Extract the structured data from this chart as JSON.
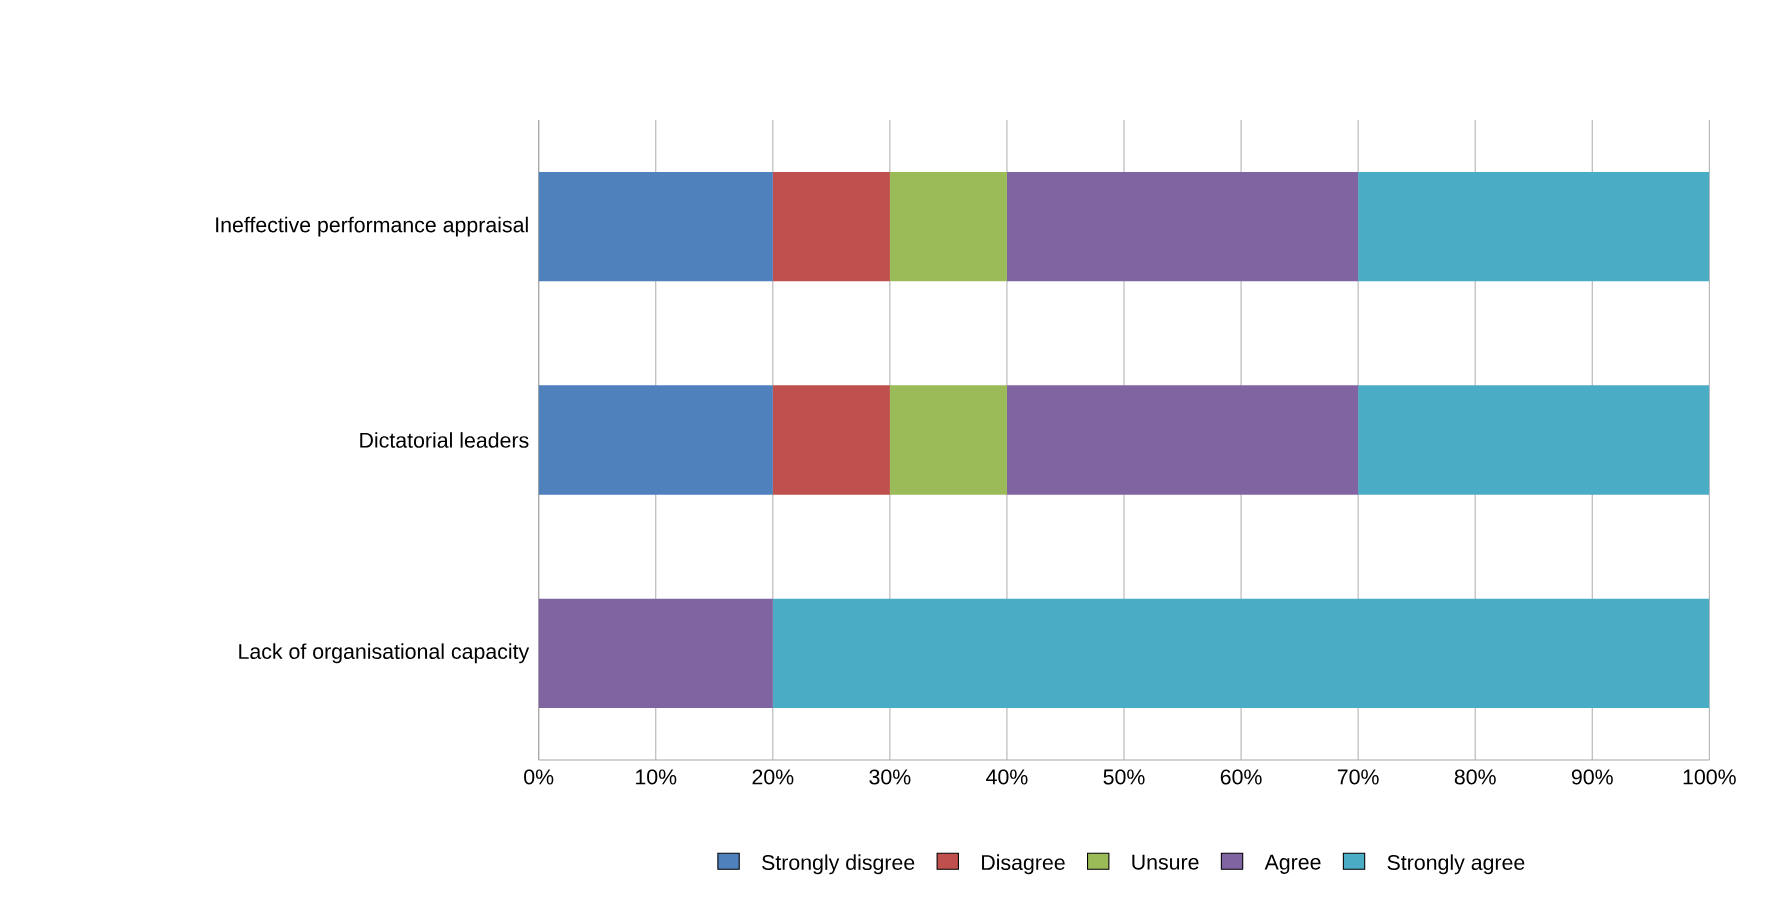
{
  "chart_data": {
    "type": "bar",
    "orientation": "horizontal",
    "stacked": true,
    "categories": [
      "Ineffective performance appraisal",
      "Dictatorial leaders",
      "Lack of organisational capacity"
    ],
    "series": [
      {
        "name": "Strongly disgree",
        "color": "#4f81bd",
        "values": [
          20,
          20,
          0
        ]
      },
      {
        "name": "Disagree",
        "color": "#c0504d",
        "values": [
          10,
          10,
          0
        ]
      },
      {
        "name": "Unsure",
        "color": "#9bbb59",
        "values": [
          10,
          10,
          0
        ]
      },
      {
        "name": "Agree",
        "color": "#8064a2",
        "values": [
          30,
          30,
          20
        ]
      },
      {
        "name": "Strongly agree",
        "color": "#4bacc6",
        "values": [
          30,
          30,
          80
        ]
      }
    ],
    "xlim": [
      0,
      100
    ],
    "xticks": [
      {
        "value": 0,
        "label": "0%"
      },
      {
        "value": 10,
        "label": "10%"
      },
      {
        "value": 20,
        "label": "20%"
      },
      {
        "value": 30,
        "label": "30%"
      },
      {
        "value": 40,
        "label": "40%"
      },
      {
        "value": 50,
        "label": "50%"
      },
      {
        "value": 60,
        "label": "60%"
      },
      {
        "value": 70,
        "label": "70%"
      },
      {
        "value": 80,
        "label": "80%"
      },
      {
        "value": 90,
        "label": "90%"
      },
      {
        "value": 100,
        "label": "100%"
      }
    ],
    "grid": "x",
    "legend": "bottom"
  }
}
